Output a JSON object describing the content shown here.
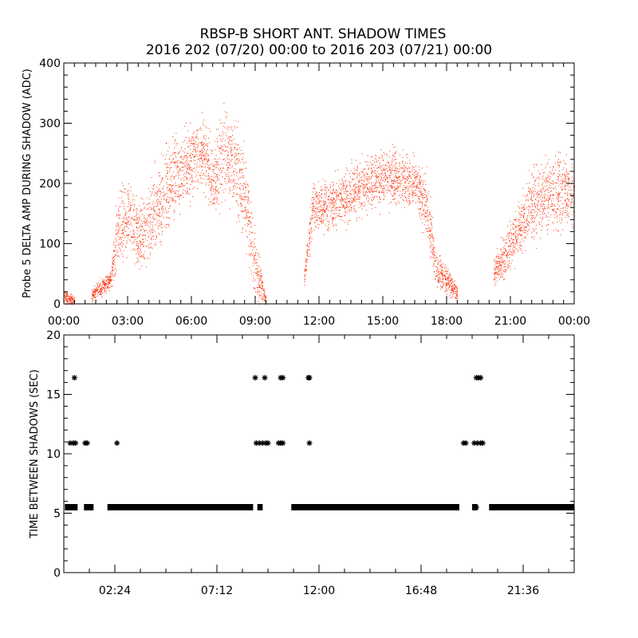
{
  "title_line1": "RBSP-B SHORT ANT. SHADOW TIMES",
  "title_line2": "2016 202 (07/20) 00:00 to 2016 203 (07/21) 00:00",
  "colors": {
    "top_points": "#ff2a00",
    "bottom_points": "#000000",
    "axes": "#000000"
  },
  "chart_data": [
    {
      "type": "scatter",
      "ylabel": "Probe 5 DELTA AMP DURING SHADOW (ADC)",
      "xlabel": "",
      "x_unit": "hours since 2016-07-20 00:00",
      "xlim": [
        0,
        24
      ],
      "ylim": [
        0,
        400
      ],
      "x_tick_labels": [
        "00:00",
        "03:00",
        "06:00",
        "09:00",
        "12:00",
        "15:00",
        "18:00",
        "21:00",
        "00:00"
      ],
      "y_tick_labels": [
        "0",
        "100",
        "200",
        "300",
        "400"
      ],
      "grid": false,
      "envelope": {
        "description": "approximate center and spread of dense point cloud (ADC) vs time (hours)",
        "hours": [
          0.0,
          0.5,
          1.0,
          1.3,
          2.2,
          2.5,
          3.0,
          3.5,
          4.0,
          4.5,
          5.0,
          5.5,
          6.0,
          6.5,
          7.0,
          7.5,
          8.0,
          8.5,
          9.0,
          9.5,
          10.0,
          10.5,
          11.3,
          11.7,
          12.0,
          12.5,
          13.0,
          13.5,
          14.0,
          14.5,
          15.0,
          15.5,
          16.0,
          16.5,
          17.0,
          17.5,
          18.0,
          18.5,
          19.0,
          19.5,
          20.2,
          20.5,
          21.0,
          21.5,
          22.0,
          22.5,
          23.0,
          23.5,
          24.0
        ],
        "center": [
          12,
          5,
          0,
          15,
          40,
          120,
          140,
          110,
          130,
          170,
          200,
          220,
          240,
          250,
          210,
          250,
          230,
          180,
          60,
          5,
          0,
          0,
          45,
          160,
          160,
          165,
          170,
          185,
          195,
          205,
          210,
          210,
          205,
          200,
          170,
          60,
          40,
          20,
          0,
          0,
          50,
          70,
          100,
          130,
          160,
          180,
          180,
          190,
          180
        ],
        "spread": [
          8,
          5,
          2,
          8,
          10,
          40,
          40,
          40,
          45,
          50,
          50,
          45,
          40,
          40,
          40,
          50,
          50,
          50,
          40,
          5,
          2,
          2,
          10,
          30,
          25,
          30,
          30,
          30,
          30,
          30,
          30,
          30,
          30,
          30,
          40,
          20,
          15,
          10,
          2,
          2,
          15,
          20,
          30,
          30,
          40,
          40,
          40,
          45,
          40
        ],
        "present": [
          1,
          1,
          0,
          1,
          1,
          1,
          1,
          1,
          1,
          1,
          1,
          1,
          1,
          1,
          1,
          1,
          1,
          1,
          1,
          1,
          0,
          0,
          1,
          1,
          1,
          1,
          1,
          1,
          1,
          1,
          1,
          1,
          1,
          1,
          1,
          1,
          1,
          1,
          0,
          0,
          1,
          1,
          1,
          1,
          1,
          1,
          1,
          1,
          1
        ]
      }
    },
    {
      "type": "scatter",
      "ylabel": "TIME BETWEEN SHADOWS (SEC)",
      "xlabel": "",
      "x_unit": "hours since 2016-07-20 00:00",
      "xlim": [
        0,
        24
      ],
      "ylim": [
        0,
        20
      ],
      "x_tick_labels": [
        "02:24",
        "07:12",
        "12:00",
        "16:48",
        "21:36"
      ],
      "y_tick_labels": [
        "0",
        "5",
        "10",
        "15",
        "20"
      ],
      "grid": false,
      "baseline_value": 5.5,
      "baseline_segments_hours": [
        [
          0.05,
          0.65
        ],
        [
          0.95,
          1.4
        ],
        [
          2.05,
          8.9
        ],
        [
          9.1,
          9.35
        ],
        [
          10.7,
          18.6
        ],
        [
          19.2,
          19.45
        ],
        [
          20.0,
          24.0
        ]
      ],
      "points": [
        {
          "x": 0.3,
          "y": 10.9
        },
        {
          "x": 0.45,
          "y": 10.9
        },
        {
          "x": 0.55,
          "y": 10.9
        },
        {
          "x": 0.5,
          "y": 16.4
        },
        {
          "x": 1.0,
          "y": 10.9
        },
        {
          "x": 1.1,
          "y": 10.9
        },
        {
          "x": 2.5,
          "y": 10.9
        },
        {
          "x": 9.0,
          "y": 16.4
        },
        {
          "x": 9.45,
          "y": 16.4
        },
        {
          "x": 9.05,
          "y": 10.9
        },
        {
          "x": 9.2,
          "y": 10.9
        },
        {
          "x": 9.35,
          "y": 10.9
        },
        {
          "x": 9.5,
          "y": 10.9
        },
        {
          "x": 9.6,
          "y": 10.9
        },
        {
          "x": 10.2,
          "y": 16.4
        },
        {
          "x": 10.3,
          "y": 16.4
        },
        {
          "x": 10.1,
          "y": 10.9
        },
        {
          "x": 10.2,
          "y": 10.9
        },
        {
          "x": 10.3,
          "y": 10.9
        },
        {
          "x": 11.5,
          "y": 16.4
        },
        {
          "x": 11.55,
          "y": 16.4
        },
        {
          "x": 11.55,
          "y": 10.9
        },
        {
          "x": 18.8,
          "y": 10.9
        },
        {
          "x": 18.9,
          "y": 10.9
        },
        {
          "x": 19.4,
          "y": 16.4
        },
        {
          "x": 19.5,
          "y": 16.4
        },
        {
          "x": 19.6,
          "y": 16.4
        },
        {
          "x": 19.3,
          "y": 10.9
        },
        {
          "x": 19.45,
          "y": 10.9
        },
        {
          "x": 19.6,
          "y": 10.9
        },
        {
          "x": 19.7,
          "y": 10.9
        },
        {
          "x": 19.4,
          "y": 5.5
        },
        {
          "x": 21.4,
          "y": 5.5
        },
        {
          "x": 21.6,
          "y": 5.5
        }
      ]
    }
  ]
}
